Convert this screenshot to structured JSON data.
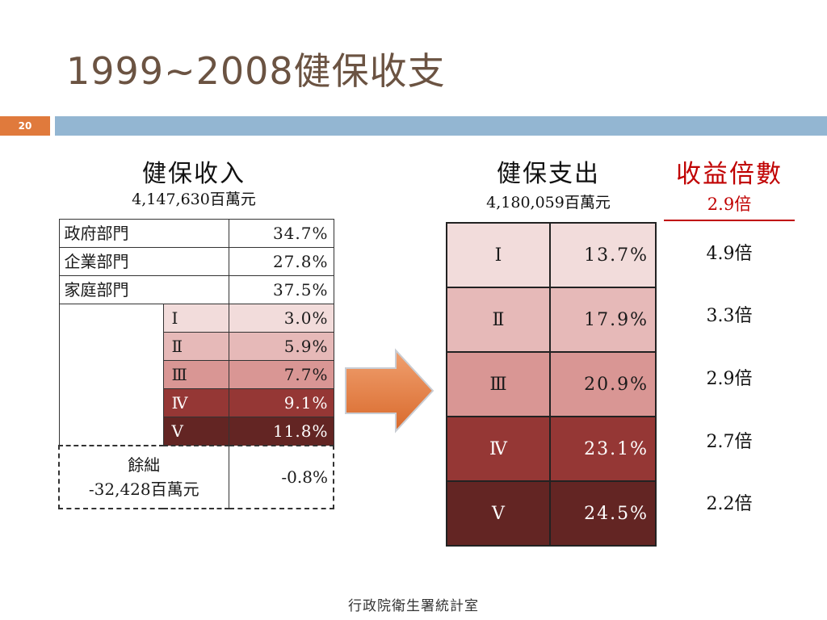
{
  "slide": {
    "title": "1999~2008健保收支",
    "page_number": "20",
    "footer": "行政院衛生署統計室"
  },
  "income": {
    "heading": "健保收入",
    "total": "4,147,630百萬元",
    "sectors": [
      {
        "label": "政府部門",
        "value": "34.7%"
      },
      {
        "label": "企業部門",
        "value": "27.8%"
      },
      {
        "label": "家庭部門",
        "value": "37.5%"
      }
    ],
    "household_quintiles": [
      {
        "label": "Ⅰ",
        "value": "3.0%",
        "color": "#f2dcdb"
      },
      {
        "label": "Ⅱ",
        "value": "5.9%",
        "color": "#e6b9b8"
      },
      {
        "label": "Ⅲ",
        "value": "7.7%",
        "color": "#d99694"
      },
      {
        "label": "Ⅳ",
        "value": "9.1%",
        "color": "#953735"
      },
      {
        "label": "Ⅴ",
        "value": "11.8%",
        "color": "#632523"
      }
    ],
    "surplus": {
      "label": "餘絀",
      "amount": "-32,428百萬元",
      "value": "-0.8%"
    }
  },
  "expense": {
    "heading": "健保支出",
    "total": "4,180,059百萬元",
    "quintiles": [
      {
        "label": "Ⅰ",
        "value": "13.7%",
        "color": "#f2dcdb"
      },
      {
        "label": "Ⅱ",
        "value": "17.9%",
        "color": "#e6b9b8"
      },
      {
        "label": "Ⅲ",
        "value": "20.9%",
        "color": "#d99694"
      },
      {
        "label": "Ⅳ",
        "value": "23.1%",
        "color": "#953735"
      },
      {
        "label": "Ⅴ",
        "value": "24.5%",
        "color": "#632523"
      }
    ]
  },
  "ratio": {
    "heading": "收益倍數",
    "overall": "2.9倍",
    "values": [
      "4.9倍",
      "3.3倍",
      "2.9倍",
      "2.7倍",
      "2.2倍"
    ]
  },
  "colors": {
    "title": "#6b5342",
    "page_badge": "#e07a3c",
    "title_bar": "#93b6d2",
    "arrow": "#e07a3c",
    "ratio_accent": "#c00000"
  }
}
